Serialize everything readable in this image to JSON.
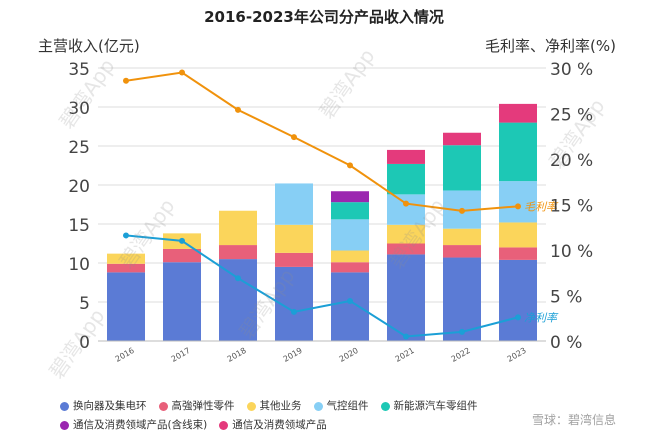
{
  "chart_data": {
    "type": "bar",
    "stacked": true,
    "title": "2016-2023年公司分产品收入情况",
    "ylabel_left": "主营收入(亿元)",
    "ylabel_right": "毛利率、净利率(%)",
    "categories": [
      "2016",
      "2017",
      "2018",
      "2019",
      "2020",
      "2021",
      "2022",
      "2023"
    ],
    "ylim_left": [
      0,
      35
    ],
    "yticks_left": [
      "0",
      "5",
      "10",
      "15",
      "20",
      "25",
      "30",
      "35"
    ],
    "ylim_right": [
      0,
      30
    ],
    "yticks_right": [
      "0 %",
      "5 %",
      "10 %",
      "15 %",
      "20 %",
      "25 %",
      "30 %"
    ],
    "grid": true,
    "legend_position": "bottom",
    "series": [
      {
        "name": "换向器及集电环",
        "color": "#5b7bd5",
        "values": [
          8.8,
          10.1,
          10.5,
          9.5,
          8.8,
          11.1,
          10.7,
          10.4
        ]
      },
      {
        "name": "高強弹性零件",
        "color": "#e8607a",
        "values": [
          1.1,
          1.7,
          1.8,
          1.8,
          1.3,
          1.4,
          1.6,
          1.6
        ]
      },
      {
        "name": "其他业务",
        "color": "#fbd55b",
        "values": [
          1.3,
          2.0,
          4.4,
          3.6,
          1.5,
          2.4,
          2.1,
          3.2
        ]
      },
      {
        "name": "气控组件",
        "color": "#87cff5",
        "values": [
          0,
          0,
          0,
          5.3,
          4.0,
          3.9,
          4.9,
          5.3
        ]
      },
      {
        "name": "新能源汽车零组件",
        "color": "#1dc8b5",
        "values": [
          0,
          0,
          0,
          0,
          2.2,
          3.9,
          5.8,
          7.5
        ]
      },
      {
        "name": "通信及消费领域产品(含线束)",
        "color": "#9b27b0",
        "values": [
          0,
          0,
          0,
          0,
          1.4,
          0,
          0,
          0
        ]
      },
      {
        "name": "通信及消费领域产品",
        "color": "#e43a7c",
        "values": [
          0,
          0,
          0,
          0,
          0,
          1.8,
          1.6,
          2.4
        ]
      }
    ],
    "lines": [
      {
        "name": "毛利率",
        "color": "#f0920c",
        "axis": "right",
        "values": [
          28.6,
          29.5,
          25.4,
          22.4,
          19.3,
          15.1,
          14.3,
          14.8
        ]
      },
      {
        "name": "净利率",
        "color": "#1b9fd6",
        "axis": "right",
        "values": [
          11.6,
          11.0,
          6.9,
          3.2,
          4.4,
          0.5,
          1.0,
          2.6
        ]
      }
    ]
  },
  "watermark_text": "碧湾App",
  "footer_text": "雪球：碧湾信息"
}
